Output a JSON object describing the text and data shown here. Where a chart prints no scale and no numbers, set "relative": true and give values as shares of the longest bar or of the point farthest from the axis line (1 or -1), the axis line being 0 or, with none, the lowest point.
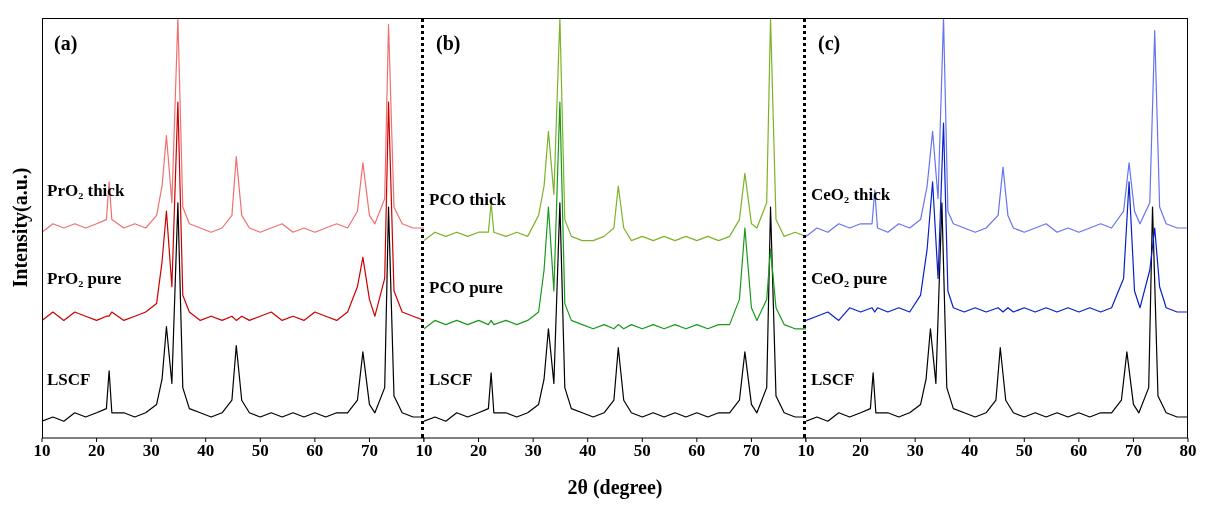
{
  "chart_data": [
    {
      "type": "line",
      "title": "(a)",
      "ylabel": "Intensity(a.u.)",
      "relative": true,
      "tick_labels": "x",
      "xlim": [
        10,
        80
      ],
      "xticks": [
        10,
        20,
        30,
        40,
        50,
        60,
        70,
        {
          "value": 80,
          "label": null
        }
      ],
      "x": [
        10,
        12,
        14,
        16,
        18,
        20,
        21.8,
        22.3,
        22.8,
        25,
        27,
        29,
        31,
        32,
        32.8,
        33.8,
        34.9,
        35.8,
        37,
        39,
        41,
        43,
        44.8,
        45.6,
        46.6,
        48,
        50,
        52,
        54,
        56,
        58,
        60,
        62,
        64,
        66,
        67.8,
        68.8,
        70,
        71,
        72.8,
        73.5,
        74.5,
        76,
        78,
        80
      ],
      "series": [
        {
          "name": "LSCF",
          "color": "#000000",
          "values": [
            0.04,
            0.05,
            0.04,
            0.06,
            0.05,
            0.06,
            0.07,
            0.16,
            0.06,
            0.06,
            0.05,
            0.06,
            0.08,
            0.14,
            0.265,
            0.13,
            0.56,
            0.12,
            0.07,
            0.06,
            0.05,
            0.06,
            0.09,
            0.22,
            0.09,
            0.06,
            0.05,
            0.06,
            0.05,
            0.06,
            0.05,
            0.06,
            0.05,
            0.06,
            0.06,
            0.09,
            0.205,
            0.08,
            0.06,
            0.12,
            0.55,
            0.1,
            0.06,
            0.05,
            0.05
          ]
        },
        {
          "name": "PrO₂ pure",
          "color": "#cc0000",
          "values": [
            0.28,
            0.3,
            0.28,
            0.3,
            0.29,
            0.28,
            0.29,
            0.29,
            0.3,
            0.28,
            0.29,
            0.3,
            0.32,
            0.42,
            0.54,
            0.36,
            0.8,
            0.34,
            0.3,
            0.28,
            0.29,
            0.28,
            0.29,
            0.28,
            0.29,
            0.28,
            0.29,
            0.3,
            0.28,
            0.29,
            0.28,
            0.3,
            0.29,
            0.28,
            0.3,
            0.36,
            0.43,
            0.33,
            0.29,
            0.38,
            0.8,
            0.35,
            0.3,
            0.29,
            0.28
          ]
        },
        {
          "name": "PrO₂ thick",
          "color": "#f07070",
          "values": [
            0.49,
            0.51,
            0.5,
            0.51,
            0.5,
            0.51,
            0.52,
            0.61,
            0.52,
            0.5,
            0.51,
            0.5,
            0.53,
            0.6,
            0.72,
            0.56,
            1.0,
            0.55,
            0.51,
            0.5,
            0.49,
            0.5,
            0.53,
            0.67,
            0.53,
            0.5,
            0.49,
            0.5,
            0.51,
            0.49,
            0.5,
            0.49,
            0.5,
            0.51,
            0.5,
            0.54,
            0.655,
            0.53,
            0.51,
            0.57,
            0.985,
            0.55,
            0.51,
            0.5,
            0.5
          ]
        }
      ]
    },
    {
      "type": "line",
      "title": "(b)",
      "xlabel": "2θ (degree)",
      "relative": true,
      "tick_labels": "x",
      "xlim": [
        10,
        80
      ],
      "xticks": [
        10,
        20,
        30,
        40,
        50,
        60,
        70,
        {
          "value": 80,
          "label": null
        }
      ],
      "x": [
        10,
        12,
        14,
        16,
        18,
        20,
        21.8,
        22.3,
        22.8,
        25,
        27,
        29,
        31,
        32,
        32.8,
        33.8,
        34.9,
        35.8,
        37,
        39,
        41,
        43,
        44.8,
        45.6,
        46.6,
        48,
        50,
        52,
        54,
        56,
        58,
        60,
        62,
        64,
        66,
        67.8,
        68.8,
        70,
        71,
        72.8,
        73.5,
        74.5,
        76,
        78,
        80
      ],
      "series": [
        {
          "name": "LSCF",
          "color": "#000000",
          "values": [
            0.04,
            0.05,
            0.04,
            0.06,
            0.05,
            0.06,
            0.07,
            0.155,
            0.06,
            0.06,
            0.05,
            0.06,
            0.08,
            0.14,
            0.26,
            0.13,
            0.56,
            0.12,
            0.07,
            0.06,
            0.05,
            0.06,
            0.09,
            0.215,
            0.09,
            0.06,
            0.05,
            0.06,
            0.05,
            0.06,
            0.05,
            0.06,
            0.05,
            0.06,
            0.06,
            0.09,
            0.205,
            0.08,
            0.06,
            0.12,
            0.55,
            0.1,
            0.06,
            0.05,
            0.05
          ]
        },
        {
          "name": "PCO pure",
          "color": "#1a9a1a",
          "values": [
            0.26,
            0.28,
            0.27,
            0.28,
            0.27,
            0.28,
            0.27,
            0.28,
            0.27,
            0.28,
            0.27,
            0.28,
            0.3,
            0.4,
            0.55,
            0.35,
            0.8,
            0.32,
            0.28,
            0.27,
            0.26,
            0.27,
            0.26,
            0.27,
            0.26,
            0.27,
            0.26,
            0.27,
            0.26,
            0.27,
            0.26,
            0.27,
            0.26,
            0.27,
            0.27,
            0.33,
            0.5,
            0.31,
            0.28,
            0.33,
            0.45,
            0.31,
            0.27,
            0.26,
            0.26
          ]
        },
        {
          "name": "PCO thick",
          "color": "#7cb327",
          "values": [
            0.47,
            0.49,
            0.48,
            0.49,
            0.48,
            0.49,
            0.49,
            0.56,
            0.49,
            0.48,
            0.49,
            0.48,
            0.53,
            0.6,
            0.73,
            0.58,
            1.0,
            0.52,
            0.48,
            0.47,
            0.47,
            0.48,
            0.5,
            0.6,
            0.5,
            0.47,
            0.48,
            0.47,
            0.48,
            0.47,
            0.48,
            0.47,
            0.48,
            0.47,
            0.48,
            0.52,
            0.63,
            0.51,
            0.5,
            0.56,
            1.0,
            0.52,
            0.48,
            0.49,
            0.48
          ]
        }
      ]
    },
    {
      "type": "line",
      "title": "(c)",
      "relative": true,
      "tick_labels": "x",
      "xlim": [
        10,
        80
      ],
      "xticks": [
        10,
        20,
        30,
        40,
        50,
        60,
        70,
        80
      ],
      "series": [
        {
          "name": "LSCF",
          "color": "#000000",
          "x": [
            10,
            12,
            14,
            16,
            18,
            20,
            21.8,
            22.3,
            22.8,
            25,
            27,
            29,
            31,
            32,
            32.8,
            33.8,
            34.9,
            35.8,
            37,
            39,
            41,
            43,
            44.8,
            45.6,
            46.6,
            48,
            50,
            52,
            54,
            56,
            58,
            60,
            62,
            64,
            66,
            67.8,
            68.8,
            70,
            71,
            72.8,
            73.5,
            74.5,
            76,
            78,
            80
          ],
          "values": [
            0.04,
            0.05,
            0.04,
            0.06,
            0.05,
            0.06,
            0.07,
            0.155,
            0.06,
            0.06,
            0.05,
            0.06,
            0.08,
            0.14,
            0.26,
            0.13,
            0.56,
            0.12,
            0.07,
            0.06,
            0.05,
            0.06,
            0.09,
            0.215,
            0.09,
            0.06,
            0.05,
            0.06,
            0.05,
            0.06,
            0.05,
            0.06,
            0.05,
            0.06,
            0.06,
            0.09,
            0.205,
            0.08,
            0.06,
            0.12,
            0.55,
            0.1,
            0.06,
            0.05,
            0.05
          ]
        },
        {
          "name": "CeO₂ pure",
          "color": "#0a1fc8",
          "x": [
            10,
            12,
            14,
            16,
            18,
            20,
            22.1,
            22.6,
            23.1,
            25,
            27,
            29,
            31,
            32.2,
            33.2,
            34.2,
            35.2,
            36,
            37,
            39,
            41,
            43,
            45.2,
            46.1,
            47,
            48,
            50,
            52,
            54,
            56,
            58,
            60,
            62,
            64,
            66,
            68.2,
            69.2,
            70.2,
            71.2,
            73,
            73.9,
            74.8,
            76,
            78,
            80
          ],
          "values": [
            0.28,
            0.29,
            0.3,
            0.28,
            0.31,
            0.3,
            0.31,
            0.3,
            0.31,
            0.3,
            0.31,
            0.3,
            0.34,
            0.45,
            0.61,
            0.38,
            0.75,
            0.35,
            0.31,
            0.3,
            0.31,
            0.3,
            0.31,
            0.3,
            0.31,
            0.3,
            0.31,
            0.3,
            0.31,
            0.3,
            0.31,
            0.3,
            0.31,
            0.3,
            0.31,
            0.38,
            0.61,
            0.35,
            0.31,
            0.4,
            0.5,
            0.36,
            0.31,
            0.3,
            0.3
          ]
        },
        {
          "name": "CeO₂ thick",
          "color": "#6674f0",
          "x": [
            10,
            12,
            14,
            16,
            18,
            20,
            22.1,
            22.6,
            23.1,
            25,
            27,
            29,
            31,
            32.2,
            33.2,
            34.2,
            35.2,
            36,
            37,
            39,
            41,
            43,
            45.2,
            46.1,
            47,
            48,
            50,
            52,
            54,
            56,
            58,
            60,
            62,
            64,
            66,
            68.2,
            69.2,
            70.2,
            71.2,
            73,
            73.9,
            74.8,
            76,
            78,
            80
          ],
          "values": [
            0.48,
            0.5,
            0.49,
            0.51,
            0.5,
            0.51,
            0.51,
            0.59,
            0.5,
            0.49,
            0.51,
            0.5,
            0.52,
            0.6,
            0.73,
            0.57,
            1.0,
            0.54,
            0.51,
            0.5,
            0.49,
            0.5,
            0.53,
            0.645,
            0.53,
            0.5,
            0.49,
            0.5,
            0.51,
            0.49,
            0.5,
            0.49,
            0.5,
            0.51,
            0.5,
            0.54,
            0.655,
            0.54,
            0.51,
            0.56,
            0.97,
            0.55,
            0.51,
            0.5,
            0.5
          ]
        }
      ]
    }
  ]
}
